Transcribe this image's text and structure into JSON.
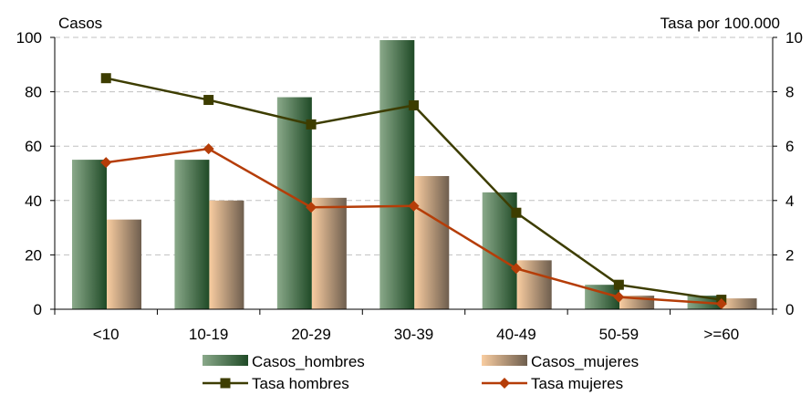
{
  "chart_data": {
    "type": "bar",
    "categories": [
      "<10",
      "10-19",
      "20-29",
      "30-39",
      "40-49",
      "50-59",
      ">=60"
    ],
    "y_left_label": "Casos",
    "y_right_label": "Tasa por 100.000",
    "y_left_range": [
      0,
      100
    ],
    "y_left_ticks": [
      "0",
      "20",
      "40",
      "60",
      "80",
      "100"
    ],
    "y_right_range": [
      0,
      10
    ],
    "y_right_ticks": [
      "0",
      "2",
      "4",
      "6",
      "8",
      "10"
    ],
    "grid": "horizontal dashed",
    "legend_position": "bottom",
    "bar_series": [
      {
        "name": "Casos_hombres",
        "values": [
          55,
          55,
          78,
          99,
          43,
          9,
          5
        ],
        "color_light": "#8aa98a",
        "color_dark": "#1f4a26"
      },
      {
        "name": "Casos_mujeres",
        "values": [
          33,
          40,
          41,
          49,
          18,
          5,
          4
        ],
        "color_light": "#f9cda1",
        "color_dark": "#6e5e4e"
      }
    ],
    "line_series": [
      {
        "name": "Tasa hombres",
        "values": [
          8.5,
          7.7,
          6.8,
          7.5,
          3.55,
          0.9,
          0.35
        ],
        "color": "#3d3d00",
        "marker": "square"
      },
      {
        "name": "Tasa mujeres",
        "values": [
          5.4,
          5.9,
          3.75,
          3.8,
          1.5,
          0.45,
          0.2
        ],
        "color": "#b53d08",
        "marker": "diamond"
      }
    ]
  }
}
